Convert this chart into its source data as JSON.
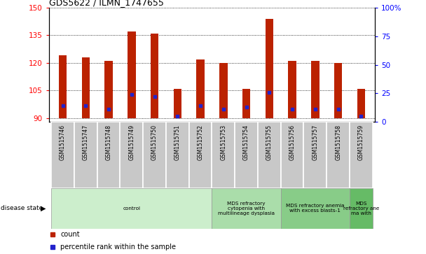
{
  "title": "GDS5622 / ILMN_1747655",
  "samples": [
    "GSM1515746",
    "GSM1515747",
    "GSM1515748",
    "GSM1515749",
    "GSM1515750",
    "GSM1515751",
    "GSM1515752",
    "GSM1515753",
    "GSM1515754",
    "GSM1515755",
    "GSM1515756",
    "GSM1515757",
    "GSM1515758",
    "GSM1515759"
  ],
  "count_values": [
    124,
    123,
    121,
    137,
    136,
    106,
    122,
    120,
    106,
    144,
    121,
    121,
    120,
    106
  ],
  "percentile_values": [
    14,
    14,
    11,
    24,
    22,
    5,
    14,
    11,
    13,
    26,
    11,
    11,
    11,
    5
  ],
  "ylim_left": [
    88,
    150
  ],
  "ylim_right": [
    0,
    100
  ],
  "yticks_left": [
    90,
    105,
    120,
    135,
    150
  ],
  "yticks_right": [
    0,
    25,
    50,
    75,
    100
  ],
  "bar_color": "#bb2200",
  "percentile_color": "#2222cc",
  "grid_color": "#000000",
  "disease_groups": [
    {
      "label": "control",
      "start": 0,
      "end": 7,
      "color": "#cceecc"
    },
    {
      "label": "MDS refractory\ncytopenia with\nmultilineage dysplasia",
      "start": 7,
      "end": 10,
      "color": "#aaddaa"
    },
    {
      "label": "MDS refractory anemia\nwith excess blasts-1",
      "start": 10,
      "end": 13,
      "color": "#88cc88"
    },
    {
      "label": "MDS\nrefractory ane\nma with",
      "start": 13,
      "end": 14,
      "color": "#66bb66"
    }
  ],
  "disease_state_label": "disease state",
  "legend_count_label": "count",
  "legend_percentile_label": "percentile rank within the sample",
  "base_value": 90,
  "sample_box_color": "#c8c8c8",
  "fig_width": 6.08,
  "fig_height": 3.63,
  "dpi": 100
}
